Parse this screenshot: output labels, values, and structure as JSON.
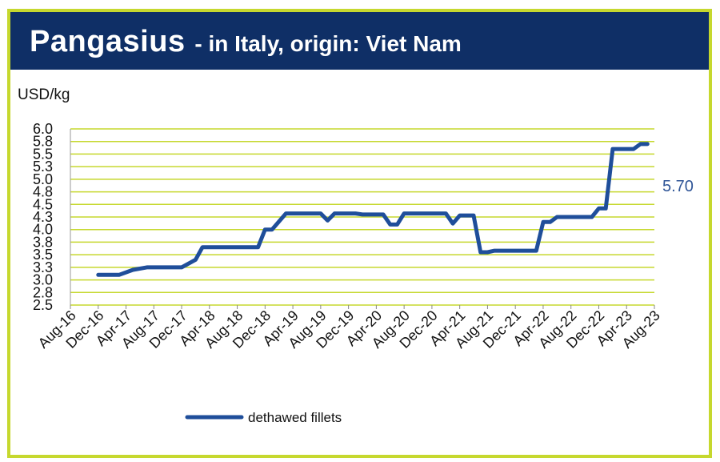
{
  "header": {
    "title_main": "Pangasius",
    "title_sub": " - in Italy, origin: Viet Nam"
  },
  "colors": {
    "banner": "#0f2f66",
    "frame": "#c6d82e",
    "grid": "#c6d82e",
    "line": "#1f4e9a",
    "last_value": "#2f5597"
  },
  "chart_data": {
    "type": "line",
    "ylabel": "USD/kg",
    "ylim": [
      2.5,
      6.0
    ],
    "y_ticks": [
      "6.0",
      "5.8",
      "5.5",
      "5.3",
      "5.0",
      "4.8",
      "4.5",
      "4.3",
      "4.0",
      "3.8",
      "3.5",
      "3.3",
      "3.0",
      "2.8",
      "2.5"
    ],
    "y_tick_values": [
      6.0,
      5.75,
      5.5,
      5.25,
      5.0,
      4.75,
      4.5,
      4.25,
      4.0,
      3.75,
      3.5,
      3.25,
      3.0,
      2.75,
      2.5
    ],
    "x_ticks": [
      "Aug-16",
      "Dec-16",
      "Apr-17",
      "Aug-17",
      "Dec-17",
      "Apr-18",
      "Aug-18",
      "Dec-18",
      "Apr-19",
      "Aug-19",
      "Dec-19",
      "Apr-20",
      "Aug-20",
      "Dec-20",
      "Apr-21",
      "Aug-21",
      "Dec-21",
      "Apr-22",
      "Aug-22",
      "Dec-22",
      "Apr-23",
      "Aug-23"
    ],
    "grid": true,
    "legend": "bottom-left",
    "last_value_label": "5.70",
    "series": [
      {
        "name": "dethawed fillets",
        "points": [
          [
            "Dec-16",
            3.1
          ],
          [
            "Mar-17",
            3.1
          ],
          [
            "May-17",
            3.2
          ],
          [
            "Jul-17",
            3.25
          ],
          [
            "Dec-17",
            3.25
          ],
          [
            "Feb-18",
            3.4
          ],
          [
            "Mar-18",
            3.65
          ],
          [
            "May-18",
            3.65
          ],
          [
            "Nov-18",
            3.65
          ],
          [
            "Dec-18",
            4.0
          ],
          [
            "Jan-19",
            4.0
          ],
          [
            "Mar-19",
            4.32
          ],
          [
            "Aug-19",
            4.32
          ],
          [
            "Sep-19",
            4.18
          ],
          [
            "Oct-19",
            4.32
          ],
          [
            "Jan-20",
            4.32
          ],
          [
            "Feb-20",
            4.3
          ],
          [
            "May-20",
            4.3
          ],
          [
            "Jun-20",
            4.1
          ],
          [
            "Jul-20",
            4.1
          ],
          [
            "Aug-20",
            4.32
          ],
          [
            "Feb-21",
            4.32
          ],
          [
            "Mar-21",
            4.12
          ],
          [
            "Apr-21",
            4.28
          ],
          [
            "Jun-21",
            4.28
          ],
          [
            "Jul-21",
            3.55
          ],
          [
            "Aug-21",
            3.55
          ],
          [
            "Sep-21",
            3.58
          ],
          [
            "Oct-21",
            3.58
          ],
          [
            "Mar-22",
            3.58
          ],
          [
            "Apr-22",
            4.15
          ],
          [
            "May-22",
            4.15
          ],
          [
            "Jun-22",
            4.25
          ],
          [
            "Nov-22",
            4.25
          ],
          [
            "Dec-22",
            4.42
          ],
          [
            "Jan-23",
            4.42
          ],
          [
            "Feb-23",
            5.6
          ],
          [
            "May-23",
            5.6
          ],
          [
            "Jun-23",
            5.7
          ],
          [
            "Jul-23",
            5.7
          ]
        ]
      }
    ]
  }
}
